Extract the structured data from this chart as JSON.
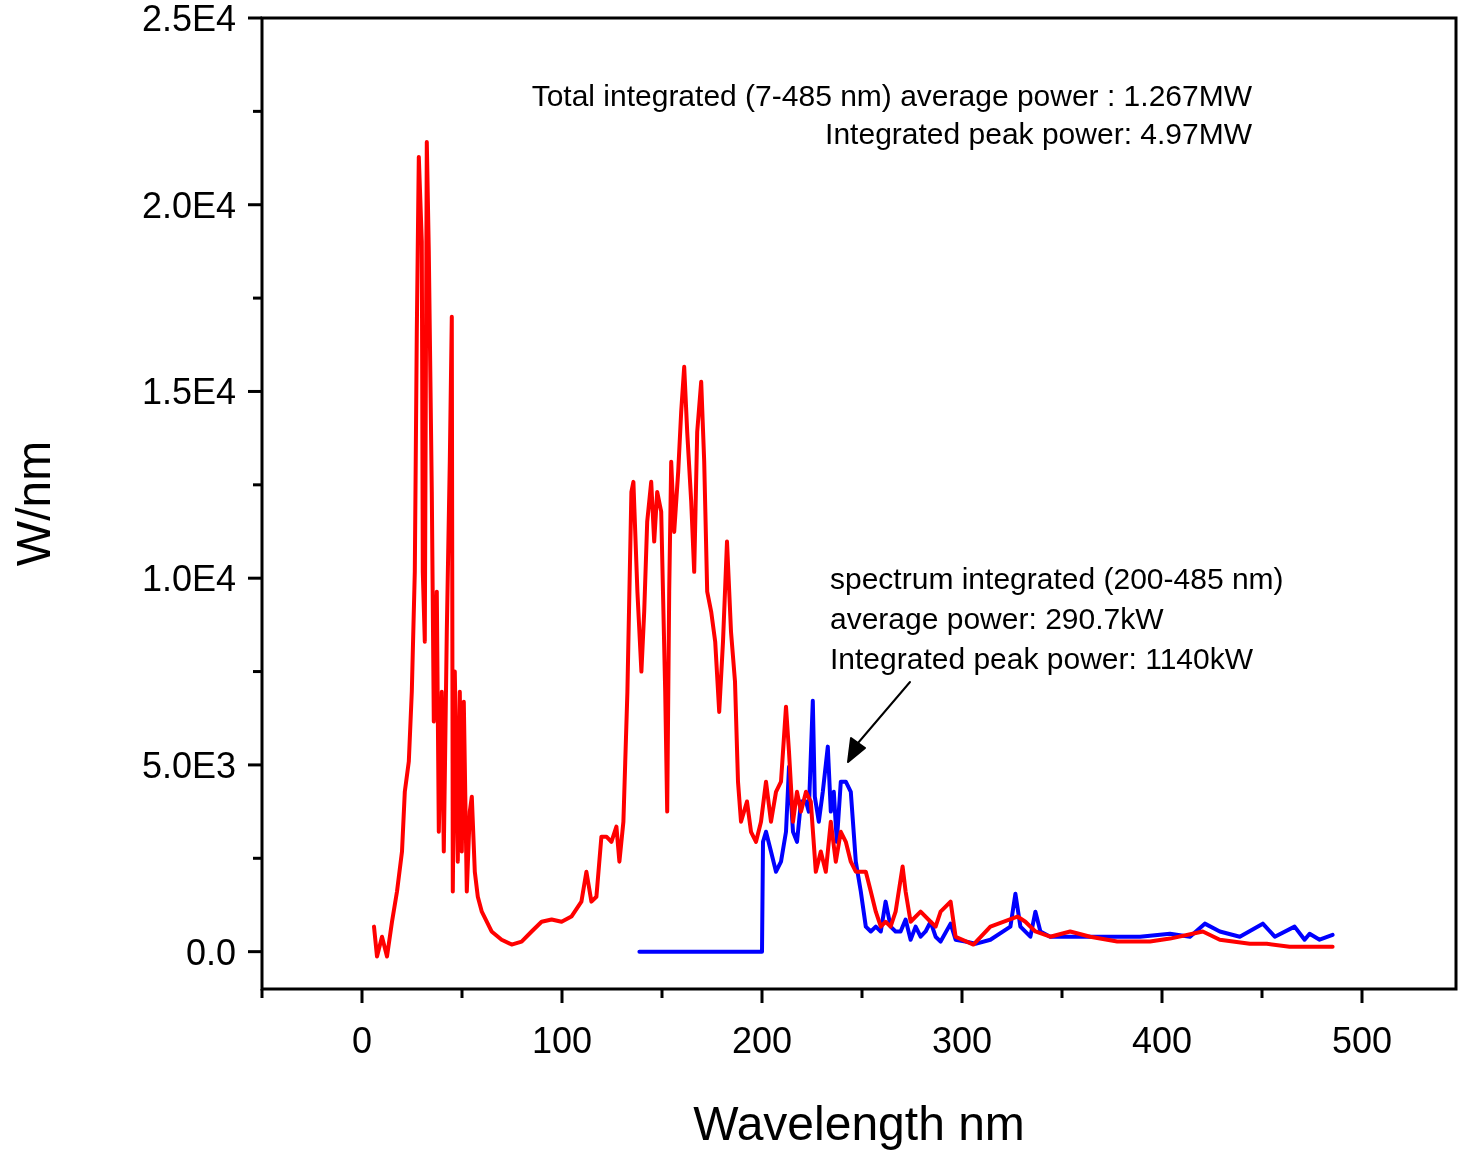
{
  "chart_data": {
    "type": "line",
    "xlabel": "Wavelength nm",
    "ylabel": "W/nm",
    "xlim": [
      -50,
      547
    ],
    "ylim": [
      -1000,
      25000
    ],
    "xticks": [
      {
        "value": -50,
        "label": null
      },
      0,
      {
        "value": 50,
        "label": null
      },
      100,
      {
        "value": 150,
        "label": null
      },
      200,
      {
        "value": 250,
        "label": null
      },
      300,
      {
        "value": 350,
        "label": null
      },
      400,
      {
        "value": 450,
        "label": null
      },
      500
    ],
    "yticks": [
      {
        "value": 0,
        "label": "0.0"
      },
      {
        "value": 2500,
        "label": null
      },
      {
        "value": 5000,
        "label": "5.0E3"
      },
      {
        "value": 7500,
        "label": null
      },
      {
        "value": 10000,
        "label": "1.0E4"
      },
      {
        "value": 12500,
        "label": null
      },
      {
        "value": 15000,
        "label": "1.5E4"
      },
      {
        "value": 17500,
        "label": null
      },
      {
        "value": 20000,
        "label": "2.0E4"
      },
      {
        "value": 22500,
        "label": null
      },
      {
        "value": 25000,
        "label": "2.5E4"
      }
    ],
    "grid": false,
    "marker": "none",
    "line_style": "solid",
    "series": [
      {
        "color": "#0000ff",
        "x": [
          138.7,
          200,
          200.5,
          202,
          204.5,
          207,
          209.5,
          212,
          213.5,
          215.5,
          217.5,
          219.5,
          222,
          223.4,
          225.4,
          226.4,
          228.4,
          230.4,
          232.9,
          234.4,
          235.9,
          237.4,
          239.4,
          241.9,
          244.4,
          246.9,
          249.4,
          251.9,
          254.4,
          256.9,
          259.4,
          261.8,
          264.3,
          266.8,
          269.3,
          271.8,
          274.3,
          276.8,
          279.3,
          281.8,
          284.3,
          286.8,
          289.3,
          294.3,
          296.8,
          301.7,
          306.7,
          314.2,
          324.2,
          326.7,
          329.2,
          334.2,
          336.7,
          339.2,
          344.1,
          364.1,
          389,
          404,
          414,
          421.4,
          428.9,
          438.9,
          450.4,
          456.4,
          466.3,
          471.3,
          473.8,
          478.8,
          485.3
        ],
        "values": [
          0,
          0,
          2940,
          3210,
          2680,
          2140,
          2410,
          3210,
          4950,
          3210,
          2940,
          4020,
          4020,
          3750,
          6720,
          4150,
          3480,
          4280,
          5490,
          3750,
          4280,
          2940,
          4550,
          4550,
          4280,
          2410,
          1610,
          670,
          540,
          670,
          540,
          1340,
          670,
          540,
          540,
          860,
          320,
          670,
          400,
          540,
          800,
          400,
          270,
          750,
          320,
          270,
          210,
          320,
          670,
          1550,
          670,
          400,
          1070,
          540,
          400,
          400,
          400,
          480,
          400,
          750,
          540,
          400,
          750,
          400,
          670,
          320,
          480,
          320,
          450
        ]
      },
      {
        "color": "#ff0000",
        "x": [
          6,
          7.5,
          10,
          12.5,
          15,
          17.5,
          20,
          21.4,
          23.4,
          24.9,
          26.4,
          27.4,
          28.4,
          29.9,
          30.4,
          31.4,
          32.4,
          33.4,
          34.9,
          35.9,
          37.4,
          38.4,
          39.9,
          40.9,
          42.4,
          43.9,
          44.9,
          45.4,
          46.4,
          47.9,
          48.9,
          49.9,
          50.9,
          52.4,
          53.9,
          54.9,
          56.4,
          57.9,
          59.9,
          64.8,
          69.8,
          74.8,
          79.8,
          84.8,
          89.8,
          94.8,
          99.8,
          104.7,
          109.7,
          112.2,
          114.7,
          117.2,
          119.7,
          122.2,
          124.7,
          127.2,
          128.7,
          130.7,
          132.7,
          134.7,
          135.7,
          137.7,
          139.7,
          141.1,
          142.6,
          144.6,
          146.1,
          147.6,
          149.6,
          151.6,
          152.6,
          153.6,
          154.6,
          156.1,
          158.1,
          159.6,
          161.1,
          162.6,
          164.6,
          166.1,
          167.6,
          169.6,
          171.1,
          172.6,
          174.6,
          176.6,
          178.6,
          180.5,
          182.5,
          184.5,
          186.5,
          188,
          189.5,
          191,
          192.5,
          194.5,
          197,
          199.5,
          202,
          204.5,
          207,
          209.5,
          212,
          213.5,
          215.5,
          217.5,
          219.5,
          222,
          224.4,
          226.9,
          229.4,
          231.9,
          234.4,
          236.9,
          239.4,
          241.9,
          244.4,
          246.9,
          249.4,
          251.9,
          254.4,
          256.9,
          259.4,
          261.8,
          264.3,
          266.8,
          270.3,
          271.8,
          274.3,
          279.3,
          284.3,
          286.8,
          289.3,
          294.3,
          296.8,
          305.7,
          314.2,
          327.7,
          331.7,
          336.7,
          344.1,
          354.1,
          364.1,
          377.6,
          394,
          404,
          420.4,
          428.9,
          443.9,
          452.4,
          463.8,
          473.8,
          485.3
        ],
        "values": [
          670,
          -130,
          400,
          -130,
          800,
          1610,
          2680,
          4280,
          5090,
          6960,
          10170,
          16600,
          21280,
          19010,
          10170,
          8300,
          21680,
          18740,
          12310,
          6160,
          9640,
          3210,
          6960,
          2680,
          8570,
          13120,
          17000,
          1610,
          7500,
          2410,
          6960,
          2680,
          6690,
          1610,
          3750,
          4150,
          2140,
          1470,
          1070,
          540,
          320,
          190,
          270,
          540,
          800,
          860,
          800,
          940,
          1340,
          2140,
          1340,
          1470,
          3080,
          3080,
          2940,
          3350,
          2410,
          3480,
          6960,
          12310,
          12580,
          9640,
          7500,
          9100,
          11510,
          12580,
          10980,
          12310,
          11780,
          6960,
          3750,
          9640,
          13120,
          11240,
          12850,
          14460,
          15660,
          13920,
          12050,
          10170,
          13920,
          15260,
          13120,
          9640,
          9100,
          8300,
          6420,
          8300,
          10980,
          8570,
          7230,
          4550,
          3480,
          3750,
          4020,
          3210,
          2940,
          3480,
          4550,
          3480,
          4280,
          4550,
          6560,
          5350,
          3480,
          4280,
          3750,
          4280,
          4020,
          2140,
          2680,
          2140,
          3480,
          2410,
          3210,
          2940,
          2410,
          2140,
          2140,
          2140,
          1610,
          1070,
          670,
          800,
          670,
          1070,
          2280,
          1610,
          800,
          1070,
          800,
          670,
          1070,
          1340,
          400,
          190,
          670,
          940,
          800,
          540,
          400,
          540,
          400,
          270,
          270,
          350,
          540,
          320,
          210,
          210,
          130,
          130,
          130
        ]
      }
    ],
    "annotations": [
      "Total integrated (7-485 nm) average power : 1.267MW\nIntegrated peak power: 4.97MW",
      "spectrum integrated (200-485 nm)\naverage power:  290.7kW\nIntegrated peak power: 1140kW"
    ]
  }
}
